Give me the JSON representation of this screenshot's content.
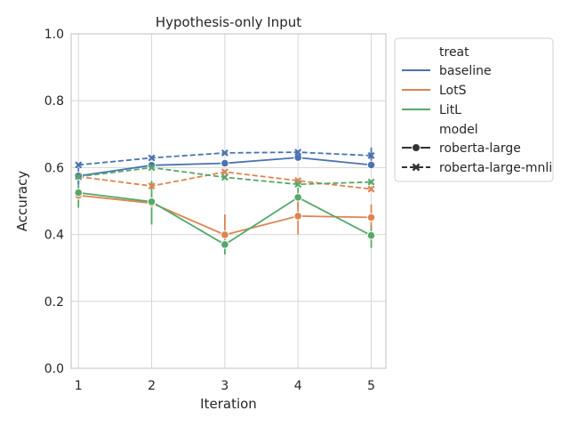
{
  "chart_data": {
    "type": "line",
    "title": "Hypothesis-only Input",
    "xlabel": "Iteration",
    "ylabel": "Accuracy",
    "x": [
      1,
      2,
      3,
      4,
      5
    ],
    "xticks": [
      "1",
      "2",
      "3",
      "4",
      "5"
    ],
    "ylim": [
      0.0,
      1.0
    ],
    "yticks": [
      "0.0",
      "0.2",
      "0.4",
      "0.6",
      "0.8",
      "1.0"
    ],
    "grid": true,
    "legend_position": "outside-right-top",
    "legend": {
      "hue_title": "treat",
      "style_title": "model",
      "treats": [
        {
          "name": "baseline",
          "color": "#4c72b0"
        },
        {
          "name": "LotS",
          "color": "#dd8452"
        },
        {
          "name": "LitL",
          "color": "#55a868"
        }
      ],
      "models": [
        {
          "name": "roberta-large",
          "line": "solid",
          "marker": "circle"
        },
        {
          "name": "roberta-large-mnli",
          "line": "dashed",
          "marker": "x"
        }
      ]
    },
    "series": [
      {
        "treat": "baseline",
        "model": "roberta-large",
        "color": "#4c72b0",
        "values": [
          0.575,
          0.607,
          0.613,
          0.63,
          0.608
        ]
      },
      {
        "treat": "baseline",
        "model": "roberta-large-mnli",
        "color": "#4c72b0",
        "values": [
          0.608,
          0.629,
          0.644,
          0.646,
          0.636
        ]
      },
      {
        "treat": "LotS",
        "model": "roberta-large",
        "color": "#dd8452",
        "values": [
          0.517,
          0.494,
          0.399,
          0.455,
          0.451
        ]
      },
      {
        "treat": "LotS",
        "model": "roberta-large-mnli",
        "color": "#dd8452",
        "values": [
          0.573,
          0.545,
          0.587,
          0.561,
          0.536
        ]
      },
      {
        "treat": "LitL",
        "model": "roberta-large",
        "color": "#55a868",
        "values": [
          0.525,
          0.498,
          0.37,
          0.511,
          0.397
        ]
      },
      {
        "treat": "LitL",
        "model": "roberta-large-mnli",
        "color": "#55a868",
        "values": [
          0.573,
          0.6,
          0.571,
          0.55,
          0.557
        ]
      }
    ],
    "error_bars": [
      {
        "treat": "LitL",
        "model": "roberta-large",
        "color": "#55a868",
        "x": 1,
        "low": 0.48,
        "high": 0.56
      },
      {
        "treat": "LitL",
        "model": "roberta-large",
        "color": "#55a868",
        "x": 2,
        "low": 0.43,
        "high": 0.56
      },
      {
        "treat": "LitL",
        "model": "roberta-large",
        "color": "#55a868",
        "x": 3,
        "low": 0.34,
        "high": 0.4
      },
      {
        "treat": "LitL",
        "model": "roberta-large",
        "color": "#55a868",
        "x": 4,
        "low": 0.48,
        "high": 0.54
      },
      {
        "treat": "LitL",
        "model": "roberta-large",
        "color": "#55a868",
        "x": 5,
        "low": 0.36,
        "high": 0.43
      },
      {
        "treat": "LotS",
        "model": "roberta-large",
        "color": "#dd8452",
        "x": 3,
        "low": 0.37,
        "high": 0.46
      },
      {
        "treat": "LotS",
        "model": "roberta-large",
        "color": "#dd8452",
        "x": 4,
        "low": 0.4,
        "high": 0.51
      },
      {
        "treat": "LotS",
        "model": "roberta-large",
        "color": "#dd8452",
        "x": 5,
        "low": 0.42,
        "high": 0.49
      },
      {
        "treat": "baseline",
        "model": "roberta-large",
        "color": "#4c72b0",
        "x": 1,
        "low": 0.55,
        "high": 0.6
      },
      {
        "treat": "baseline",
        "model": "roberta-large-mnli",
        "color": "#4c72b0",
        "x": 5,
        "low": 0.6,
        "high": 0.66
      }
    ]
  }
}
